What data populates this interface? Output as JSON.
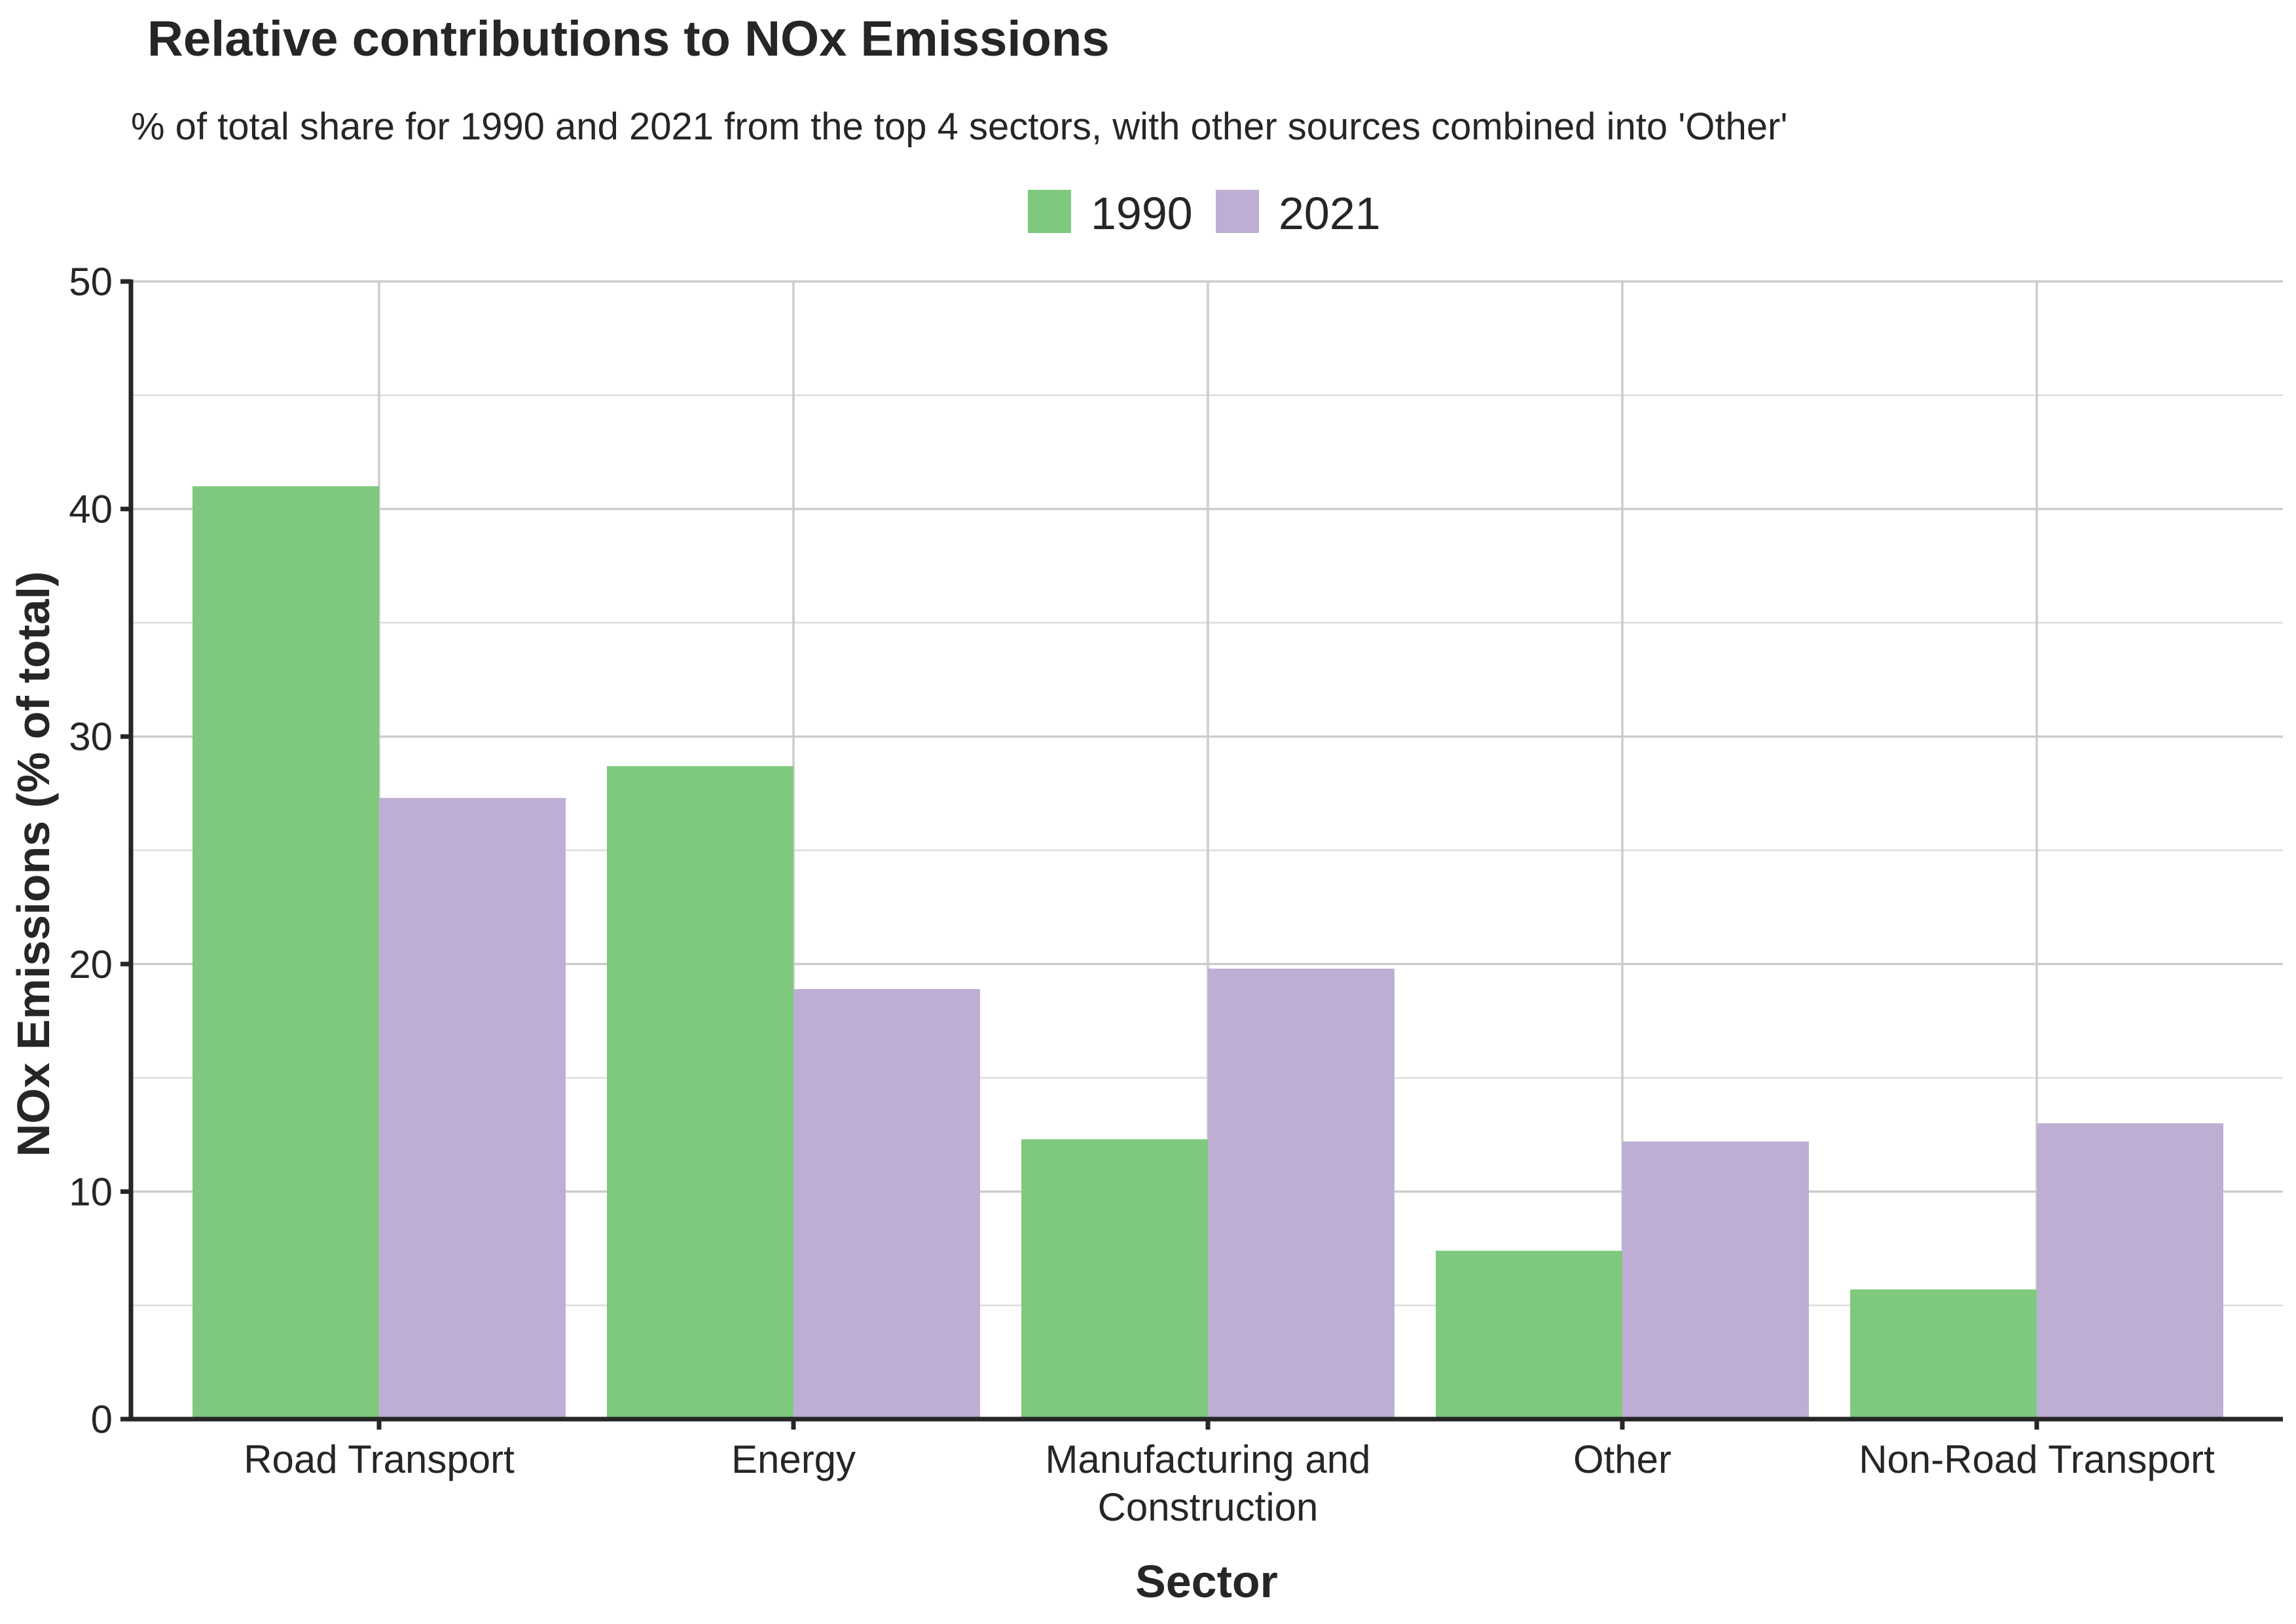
{
  "chart_data": {
    "type": "bar",
    "title": "Relative contributions to NOx Emissions",
    "subtitle": "% of total share for 1990 and 2021 from the top 4 sectors, with other sources combined into 'Other'",
    "xlabel": "Sector",
    "ylabel": "NOx Emissions (% of total)",
    "ylim": [
      0,
      50
    ],
    "yticks": [
      0,
      10,
      20,
      30,
      40,
      50
    ],
    "grid": true,
    "legend_position": "top-center",
    "categories": [
      [
        "Road Transport"
      ],
      [
        "Energy"
      ],
      [
        "Manufacturing and",
        "Construction"
      ],
      [
        "Other"
      ],
      [
        "Non-Road Transport"
      ]
    ],
    "series": [
      {
        "name": "1990",
        "color": "#7fc97f",
        "values": [
          41.0,
          28.7,
          12.3,
          7.4,
          5.7
        ]
      },
      {
        "name": "2021",
        "color": "#beaed4",
        "values": [
          27.3,
          18.9,
          19.8,
          12.2,
          13.0
        ]
      }
    ]
  }
}
